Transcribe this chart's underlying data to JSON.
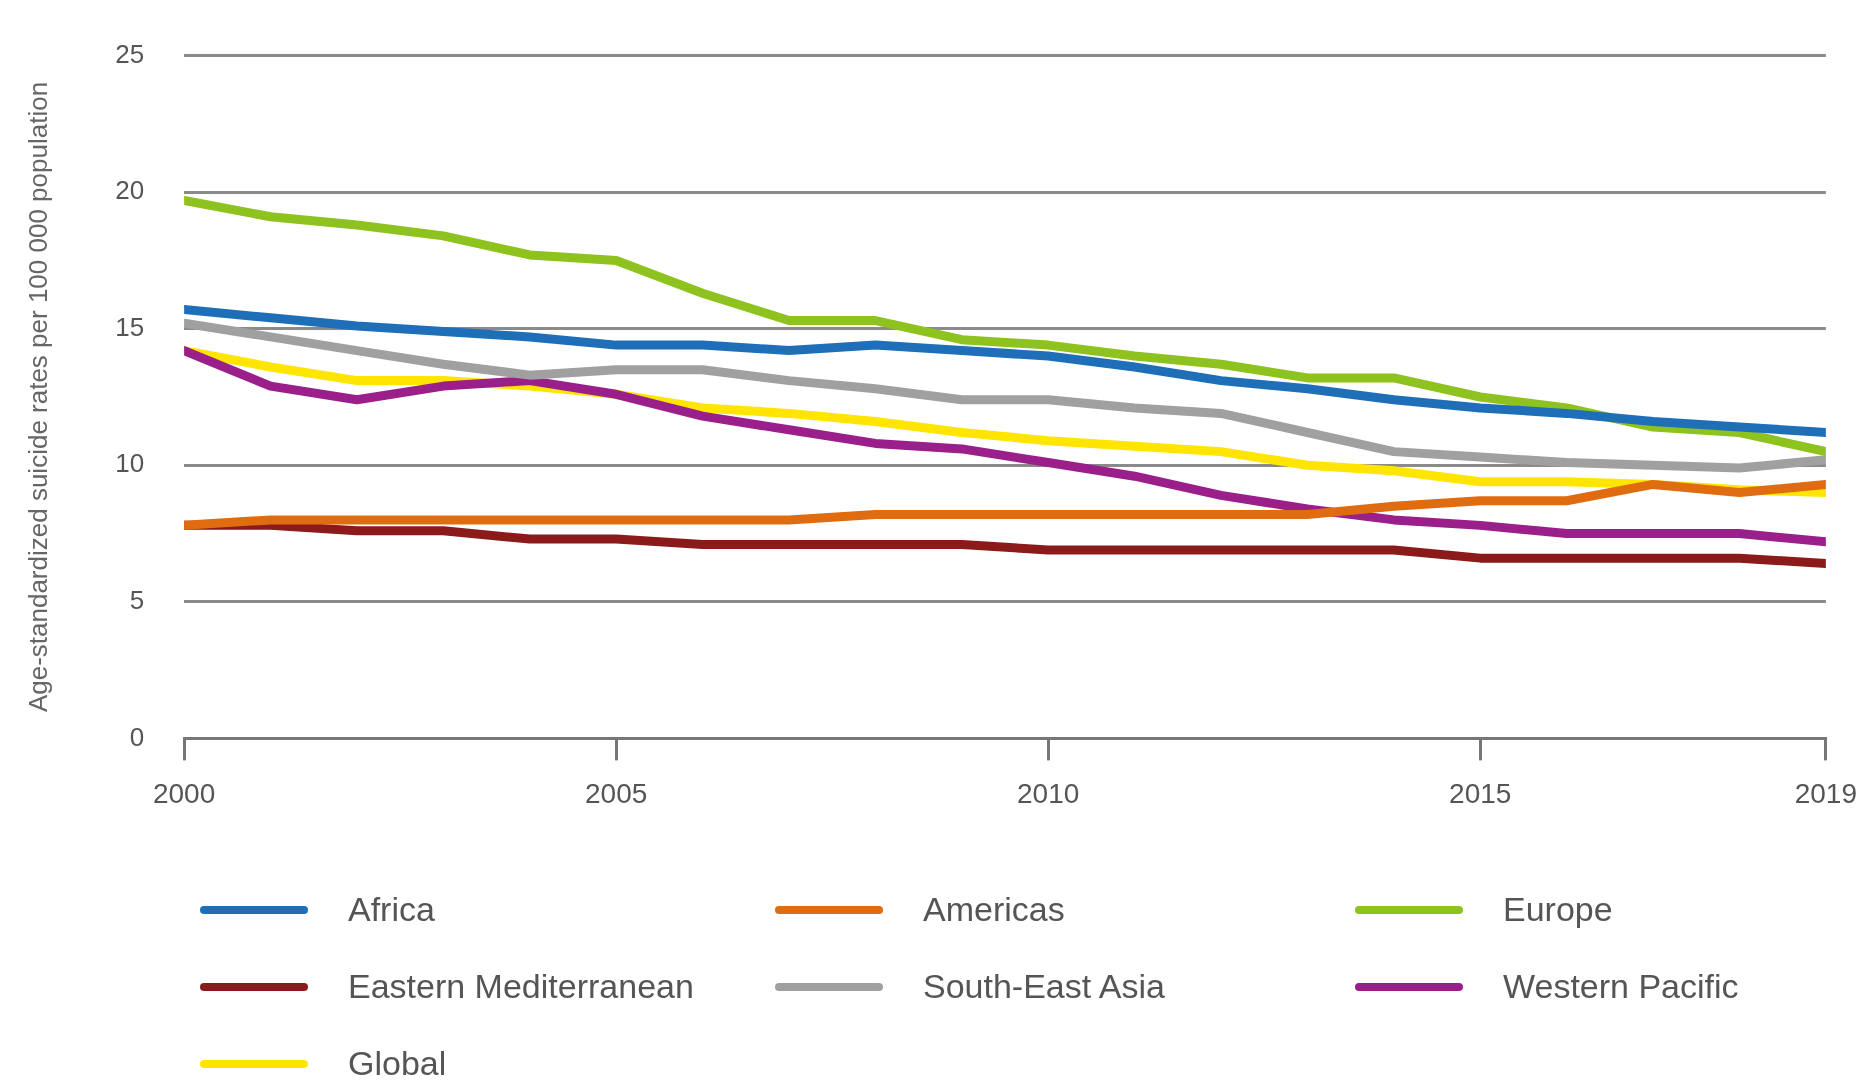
{
  "chart_data": {
    "type": "line",
    "ylabel": "Age-standardized suicide rates per 100 000 population",
    "xlim": [
      2000,
      2019
    ],
    "xticks": [
      2000,
      2005,
      2010,
      2015,
      2019
    ],
    "ylim": [
      0,
      25
    ],
    "yticks": [
      0,
      5,
      10,
      15,
      20,
      25
    ],
    "grid": "y",
    "legend": "bottom",
    "marker": "none",
    "line_style": "solid",
    "x": [
      2000,
      2001,
      2002,
      2003,
      2004,
      2005,
      2006,
      2007,
      2008,
      2009,
      2010,
      2011,
      2012,
      2013,
      2014,
      2015,
      2016,
      2017,
      2018,
      2019
    ],
    "series": [
      {
        "name": "Africa",
        "color": "#1f6fb8",
        "values": [
          15.7,
          15.4,
          15.1,
          14.9,
          14.7,
          14.4,
          14.4,
          14.2,
          14.4,
          14.2,
          14.0,
          13.6,
          13.1,
          12.8,
          12.4,
          12.1,
          11.9,
          11.6,
          11.4,
          11.2
        ]
      },
      {
        "name": "Americas",
        "color": "#e06c12",
        "values": [
          7.8,
          8.0,
          8.0,
          8.0,
          8.0,
          8.0,
          8.0,
          8.0,
          8.2,
          8.2,
          8.2,
          8.2,
          8.2,
          8.2,
          8.5,
          8.7,
          8.7,
          9.3,
          9.0,
          9.3
        ]
      },
      {
        "name": "Europe",
        "color": "#8dc21f",
        "values": [
          19.7,
          19.1,
          18.8,
          18.4,
          17.7,
          17.5,
          16.3,
          15.3,
          15.3,
          14.6,
          14.4,
          14.0,
          13.7,
          13.2,
          13.2,
          12.5,
          12.1,
          11.4,
          11.2,
          10.5
        ]
      },
      {
        "name": "Eastern Mediterranean",
        "color": "#8b1a1a",
        "values": [
          7.8,
          7.8,
          7.6,
          7.6,
          7.3,
          7.3,
          7.1,
          7.1,
          7.1,
          7.1,
          6.9,
          6.9,
          6.9,
          6.9,
          6.9,
          6.6,
          6.6,
          6.6,
          6.6,
          6.4
        ]
      },
      {
        "name": "South-East Asia",
        "color": "#a0a0a0",
        "values": [
          15.2,
          14.7,
          14.2,
          13.7,
          13.3,
          13.5,
          13.5,
          13.1,
          12.8,
          12.4,
          12.4,
          12.1,
          11.9,
          11.2,
          10.5,
          10.3,
          10.1,
          10.0,
          9.9,
          10.2
        ]
      },
      {
        "name": "Western Pacific",
        "color": "#9b1f8a",
        "values": [
          14.2,
          12.9,
          12.4,
          12.9,
          13.1,
          12.6,
          11.8,
          11.3,
          10.8,
          10.6,
          10.1,
          9.6,
          8.9,
          8.4,
          8.0,
          7.8,
          7.5,
          7.5,
          7.5,
          7.2
        ]
      },
      {
        "name": "Global",
        "color": "#ffe500",
        "values": [
          14.2,
          13.6,
          13.1,
          13.1,
          12.9,
          12.6,
          12.1,
          11.9,
          11.6,
          11.2,
          10.9,
          10.7,
          10.5,
          10.0,
          9.8,
          9.4,
          9.4,
          9.3,
          9.1,
          9.0
        ]
      }
    ]
  }
}
